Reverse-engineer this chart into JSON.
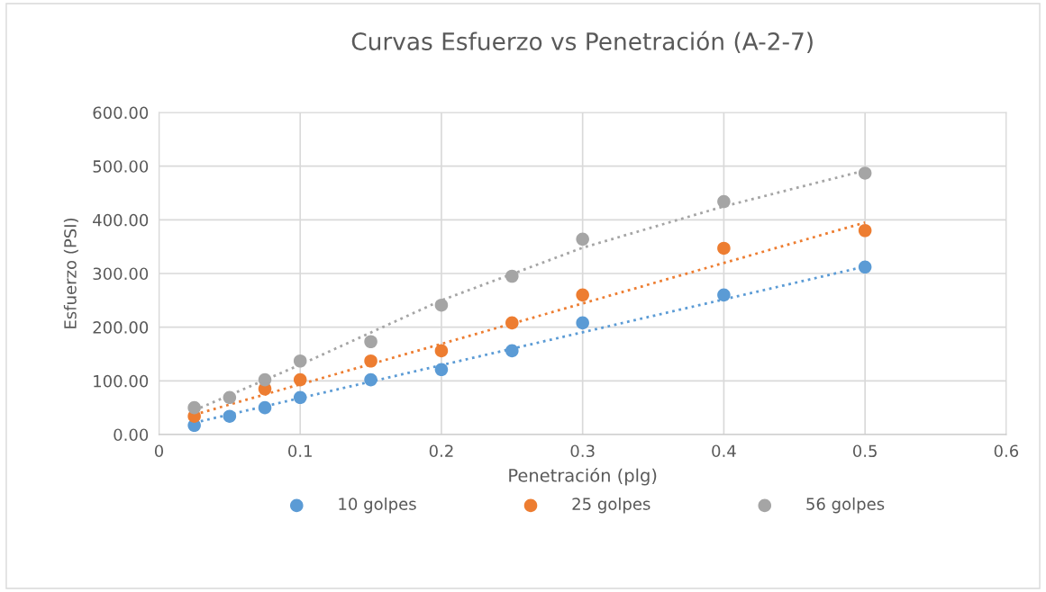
{
  "chart_data": {
    "type": "scatter",
    "title": "Curvas Esfuerzo vs Penetración (A-2-7)",
    "xlabel": "Penetración (plg)",
    "ylabel": "Esfuerzo (PSI)",
    "xlim": [
      0,
      0.6
    ],
    "xticks": [
      0,
      0.1,
      0.2,
      0.3,
      0.4,
      0.5,
      0.6
    ],
    "ylim": [
      0,
      600
    ],
    "yticks": [
      {
        "value": 0,
        "label": "0.00"
      },
      {
        "value": 100,
        "label": "100.00"
      },
      {
        "value": 200,
        "label": "200.00"
      },
      {
        "value": 300,
        "label": "300.00"
      },
      {
        "value": 400,
        "label": "400.00"
      },
      {
        "value": 500,
        "label": "500.00"
      },
      {
        "value": 600,
        "label": "600.00"
      }
    ],
    "grid": true,
    "legend": "bottom",
    "marker": "circle",
    "series": [
      {
        "name": "10 golpes",
        "color": "#5b9bd5",
        "x": [
          0.025,
          0.05,
          0.075,
          0.1,
          0.15,
          0.2,
          0.25,
          0.3,
          0.4,
          0.5
        ],
        "values": [
          17,
          34,
          50,
          69,
          102,
          121,
          156,
          208,
          260,
          312
        ]
      },
      {
        "name": "25 golpes",
        "color": "#ed7d31",
        "x": [
          0.025,
          0.075,
          0.1,
          0.15,
          0.2,
          0.25,
          0.3,
          0.4,
          0.5
        ],
        "values": [
          34,
          85,
          102,
          137,
          156,
          208,
          260,
          347,
          380
        ]
      },
      {
        "name": "56 golpes",
        "color": "#a5a5a5",
        "x": [
          0.025,
          0.05,
          0.075,
          0.1,
          0.15,
          0.2,
          0.25,
          0.3,
          0.4,
          0.5
        ],
        "values": [
          50,
          69,
          102,
          137,
          173,
          241,
          295,
          364,
          434,
          487
        ]
      },
      {
        "type": "line",
        "line_style": "dotted",
        "marker": "none",
        "color": "#5b9bd5",
        "x": [
          0.025,
          0.5
        ],
        "values": [
          22,
          313
        ]
      },
      {
        "type": "line",
        "line_style": "dotted",
        "marker": "none",
        "color": "#ed7d31",
        "x": [
          0.025,
          0.5
        ],
        "values": [
          37,
          395
        ]
      },
      {
        "type": "line",
        "line_style": "dotted",
        "marker": "none",
        "color": "#a5a5a5",
        "x": [
          0.025,
          0.1,
          0.2,
          0.3,
          0.4,
          0.5
        ],
        "values": [
          45,
          130,
          250,
          348,
          425,
          492
        ]
      }
    ]
  }
}
